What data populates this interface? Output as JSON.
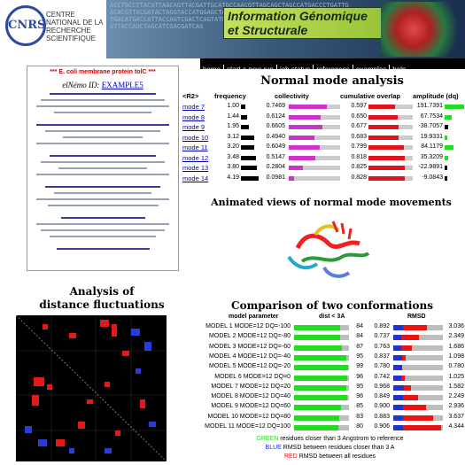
{
  "header": {
    "cnrs_mark": "CNRS",
    "cnrs_text": "CENTRE NATIONAL DE LA RECHERCHE SCIENTIFIQUE",
    "sequence_bg": "ACCTGCCTTACGTTAGCAGTTACGATTGCATGCCAACGTTAGCAGCTAGCCATGACCCTGATTGACACGTTACGATACTAGGTACCATGGAGCTAAAGCCATGCTCAGTAATGGCAGTACGCATGCATTGACATGACCATTACCAGTCGACTCAGTATGCGCATGCTAGCATGCAATGCGAGTCTAGCAATCGTTACCAGCTAGCATCGACGATCAG",
    "title": "Information Génomique et Structurale",
    "nav": [
      "home",
      "start a new run",
      "job status",
      "references",
      "examples",
      "help"
    ]
  },
  "page_shot": {
    "heading": "*** E. coli membrane protein tolC ***",
    "id_label": "elNémo ID:",
    "id_value": "EXAMPLE5"
  },
  "nma": {
    "title": "Normal mode analysis",
    "headers": {
      "mode": "<R2>",
      "frequency": "frequency",
      "collectivity": "collectivity",
      "overlap": "cumulative overlap",
      "amplitude": "amplitude (dq)"
    },
    "rows": [
      {
        "mode": "mode 7",
        "freq": "1.00",
        "freq_v": 1.0,
        "coll": "0.7469",
        "coll_v": 0.7469,
        "over": "0.597",
        "over_v": 0.597,
        "amp": "191.7391",
        "amp_v": 191.7391
      },
      {
        "mode": "mode 8",
        "freq": "1.44",
        "freq_v": 1.44,
        "coll": "0.6124",
        "coll_v": 0.6124,
        "over": "0.650",
        "over_v": 0.65,
        "amp": "67.7534",
        "amp_v": 67.7534
      },
      {
        "mode": "mode 9",
        "freq": "1.95",
        "freq_v": 1.95,
        "coll": "0.6605",
        "coll_v": 0.6605,
        "over": "0.677",
        "over_v": 0.677,
        "amp": "-38.7057",
        "amp_v": -38.7057
      },
      {
        "mode": "mode 10",
        "freq": "3.12",
        "freq_v": 3.12,
        "coll": "0.4940",
        "coll_v": 0.494,
        "over": "0.683",
        "over_v": 0.683,
        "amp": "19.9331",
        "amp_v": 19.9331
      },
      {
        "mode": "mode 11",
        "freq": "3.20",
        "freq_v": 3.2,
        "coll": "0.6049",
        "coll_v": 0.6049,
        "over": "0.799",
        "over_v": 0.799,
        "amp": "84.1179",
        "amp_v": 84.1179
      },
      {
        "mode": "mode 12",
        "freq": "3.48",
        "freq_v": 3.48,
        "coll": "0.5147",
        "coll_v": 0.5147,
        "over": "0.818",
        "over_v": 0.818,
        "amp": "35.3209",
        "amp_v": 35.3209
      },
      {
        "mode": "mode 13",
        "freq": "3.80",
        "freq_v": 3.8,
        "coll": "0.2804",
        "coll_v": 0.2804,
        "over": "0.825",
        "over_v": 0.825,
        "amp": "-22.9891",
        "amp_v": -22.9891
      },
      {
        "mode": "mode 14",
        "freq": "4.19",
        "freq_v": 4.19,
        "coll": "0.0981",
        "coll_v": 0.0981,
        "over": "0.828",
        "over_v": 0.828,
        "amp": "-9.0843",
        "amp_v": -9.0843
      }
    ],
    "colors": {
      "collectivity": "#cc33cc",
      "overlap": "#e0141c",
      "amp_pos": "#22dd22",
      "amp_neg": "#000000"
    }
  },
  "anim": {
    "title": "Animated views of normal mode movements"
  },
  "dist": {
    "title_line1": "Analysis of",
    "title_line2": "distance fluctuations"
  },
  "comparison": {
    "title": "Comparison of two conformations",
    "headers": {
      "model": "model parameter",
      "dist": "dist < 3A",
      "rmsd": "RMSD"
    },
    "rows": [
      {
        "model": "MODEL 1 MODE=12 DQ=-100",
        "dist": "84",
        "dist_v": 84,
        "v1": "0.892",
        "v1_v": 0.892,
        "v2": "3.036",
        "v2_v": 3.036
      },
      {
        "model": "MODEL 2 MODE=12 DQ=-80",
        "dist": "84",
        "dist_v": 84,
        "v1": "0.737",
        "v1_v": 0.737,
        "v2": "2.349",
        "v2_v": 2.349
      },
      {
        "model": "MODEL 3 MODE=12 DQ=-60",
        "dist": "87",
        "dist_v": 87,
        "v1": "0.763",
        "v1_v": 0.763,
        "v2": "1.686",
        "v2_v": 1.686
      },
      {
        "model": "MODEL 4 MODE=12 DQ=-40",
        "dist": "95",
        "dist_v": 95,
        "v1": "0.837",
        "v1_v": 0.837,
        "v2": "1.098",
        "v2_v": 1.098
      },
      {
        "model": "MODEL 5 MODE=12 DQ=-20",
        "dist": "99",
        "dist_v": 99,
        "v1": "0.780",
        "v1_v": 0.78,
        "v2": "0.780",
        "v2_v": 0.78
      },
      {
        "model": "MODEL 6 MODE=12 DQ=0",
        "dist": "96",
        "dist_v": 96,
        "v1": "0.742",
        "v1_v": 0.742,
        "v2": "1.025",
        "v2_v": 1.025
      },
      {
        "model": "MODEL 7 MODE=12 DQ=20",
        "dist": "95",
        "dist_v": 95,
        "v1": "0.968",
        "v1_v": 0.968,
        "v2": "1.582",
        "v2_v": 1.582
      },
      {
        "model": "MODEL 8 MODE=12 DQ=40",
        "dist": "96",
        "dist_v": 96,
        "v1": "0.849",
        "v1_v": 0.849,
        "v2": "2.249",
        "v2_v": 2.249
      },
      {
        "model": "MODEL 9 MODE=12 DQ=60",
        "dist": "85",
        "dist_v": 85,
        "v1": "0.900",
        "v1_v": 0.9,
        "v2": "2.936",
        "v2_v": 2.936
      },
      {
        "model": "MODEL 10 MODE=12 DQ=80",
        "dist": "83",
        "dist_v": 83,
        "v1": "0.883",
        "v1_v": 0.883,
        "v2": "3.637",
        "v2_v": 3.637
      },
      {
        "model": "MODEL 11 MODE=12 DQ=100",
        "dist": "80",
        "dist_v": 80,
        "v1": "0.906",
        "v1_v": 0.906,
        "v2": "4.344",
        "v2_v": 4.344
      }
    ],
    "legend": {
      "green_word": "GREEN",
      "green_text": " residues closer than 3 Angstrom to reference",
      "blue_word": "BLUE",
      "blue_text": " RMSD between residues closer than 3 A",
      "red_word": "RED",
      "red_text": " RMSD between all residues"
    },
    "colors": {
      "green": "#22dd22",
      "blue": "#2233cc",
      "red": "#ee1111"
    }
  }
}
